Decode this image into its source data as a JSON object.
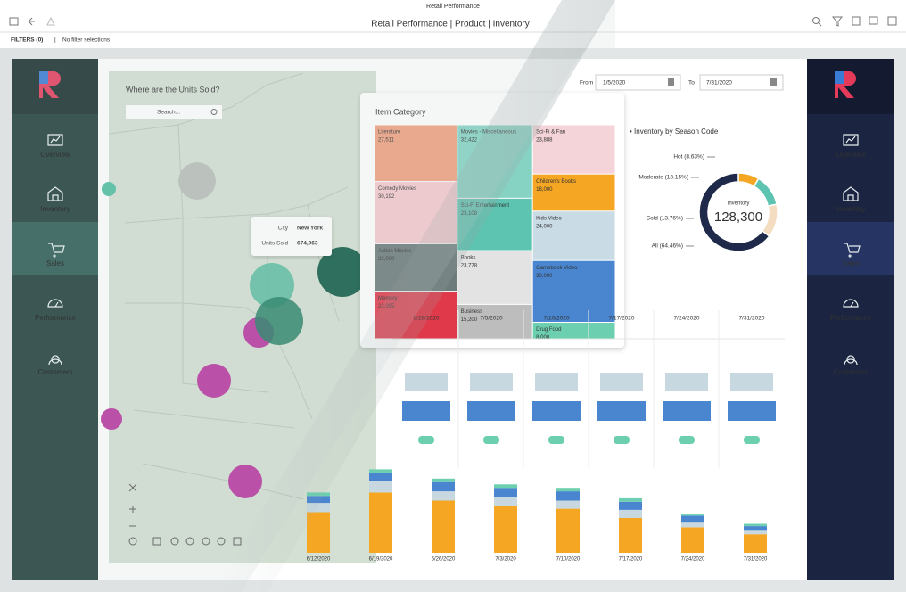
{
  "header": {
    "app": "Retail Performance",
    "title": "Retail Performance | Product | Inventory",
    "filters": "FILTERS (0)",
    "separator": "|",
    "filter_note": "No filter selections"
  },
  "nav": [
    "Overview",
    "Inventory",
    "Sales",
    "Performance",
    "Customers"
  ],
  "map": {
    "title": "Where are the Units Sold?",
    "search": "Search...",
    "tooltip": {
      "city_label": "City",
      "city": "New York",
      "units_label": "Units Sold",
      "units": "674,963"
    }
  },
  "dates": {
    "from_label": "From",
    "from": "1/5/2020",
    "to_label": "To",
    "to": "7/31/2020"
  },
  "treemap": {
    "title": "Item Category",
    "categories": [
      "Literature",
      "Comedy Movies",
      "Action Movies",
      "Memory",
      "Movies - Miscellaneous",
      "Sci-Fi Entertainment",
      "Books",
      "Business",
      "Sci-Fi & Fan",
      "Children's Books",
      "Kids Video",
      "Gamebook Video",
      "Drug Food"
    ],
    "values": [
      27511,
      30192,
      23000,
      23095,
      32422,
      23108,
      23778,
      15200,
      23888,
      18000,
      24000,
      30000,
      8000
    ],
    "value_labels": [
      "27,511",
      "30,192",
      "23,000",
      "23,095",
      "32,422",
      "23,108",
      "23,778",
      "15,200",
      "23,888",
      "18,000",
      "24,000",
      "30,000",
      "8,000"
    ],
    "colors": [
      "#f0a080",
      "#f4c8cc",
      "#6d7b7b",
      "#e03a4a",
      "#86d3c4",
      "#5cc4b0",
      "#e3e3e3",
      "#bdbdbd",
      "#f4d4d8",
      "#f5a623",
      "#c9dbe4",
      "#4a86d0",
      "#6ccfb0"
    ]
  },
  "donut": {
    "title": "• Inventory by Season Code",
    "categories": [
      "Hot",
      "Moderate",
      "Cold",
      "All"
    ],
    "values": [
      8.63,
      13.15,
      13.76,
      64.46
    ],
    "value_labels": [
      "Hot (8.63%)",
      "Moderate (13.15%)",
      "Cold (13.76%)",
      "All (64.46%)"
    ],
    "colors": [
      "#f5a623",
      "#5cc4b0",
      "#f3dcc0",
      "#1f2a4a"
    ],
    "center_label": "Inventory",
    "center_value": "128,300"
  },
  "timeline": {
    "dates": [
      "6/28/2020",
      "7/5/2020",
      "7/10/2020",
      "7/17/2020",
      "7/24/2020",
      "7/31/2020"
    ]
  },
  "stacked": {
    "categories": [
      "6/12/2020",
      "6/19/2020",
      "6/26/2020",
      "7/3/2020",
      "7/10/2020",
      "7/17/2020",
      "7/24/2020",
      "7/31/2020"
    ],
    "series": [
      {
        "color": "#f5a623",
        "values": [
          35,
          52,
          45,
          40,
          38,
          30,
          22,
          16
        ]
      },
      {
        "color": "#c8d8e0",
        "values": [
          8,
          10,
          8,
          8,
          7,
          7,
          4,
          3
        ]
      },
      {
        "color": "#4a86d0",
        "values": [
          6,
          7,
          8,
          8,
          8,
          7,
          6,
          4
        ]
      },
      {
        "color": "#6ccfb0",
        "values": [
          3,
          3,
          3,
          3,
          3,
          3,
          1,
          2
        ]
      }
    ]
  }
}
